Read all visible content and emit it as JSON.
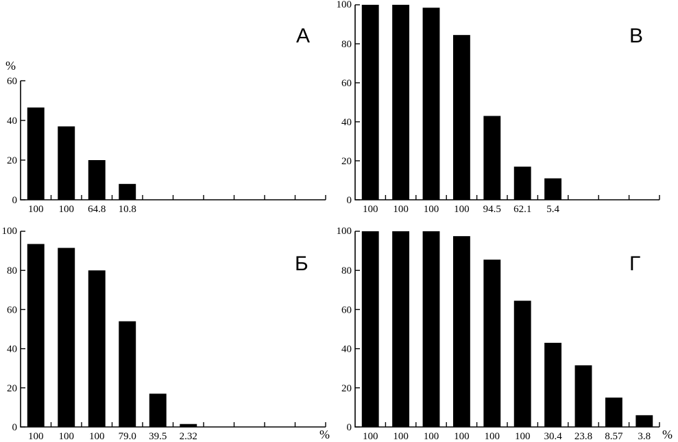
{
  "chart_data": [
    {
      "type": "bar",
      "panel": "А",
      "y_unit": "%",
      "x_unit": "",
      "ylim": [
        0,
        60
      ],
      "yticks": [
        "0",
        "20",
        "40",
        "60"
      ],
      "slots": 10,
      "categories": [
        "100",
        "100",
        "64.8",
        "10.8"
      ],
      "values": [
        46.5,
        37,
        20,
        8
      ],
      "bar_color": "#000000",
      "grid": false
    },
    {
      "type": "bar",
      "panel": "В",
      "y_unit": "",
      "x_unit": "",
      "ylim": [
        0,
        100
      ],
      "yticks": [
        "0",
        "20",
        "40",
        "60",
        "80",
        "100"
      ],
      "slots": 10,
      "categories": [
        "100",
        "100",
        "100",
        "100",
        "94.5",
        "62.1",
        "5.4"
      ],
      "values": [
        100,
        100,
        98.5,
        84.5,
        43,
        17,
        11
      ],
      "bar_color": "#000000",
      "grid": false
    },
    {
      "type": "bar",
      "panel": "Б",
      "y_unit": "",
      "x_unit": "%",
      "ylim": [
        0,
        100
      ],
      "yticks": [
        "0",
        "20",
        "40",
        "60",
        "80",
        "100"
      ],
      "slots": 10,
      "categories": [
        "100",
        "100",
        "100",
        "79.0",
        "39.5",
        "2.32"
      ],
      "values": [
        93.5,
        91.5,
        80,
        54,
        17,
        1.5
      ],
      "bar_color": "#000000",
      "grid": false
    },
    {
      "type": "bar",
      "panel": "Г",
      "y_unit": "",
      "x_unit": "%",
      "ylim": [
        0,
        100
      ],
      "yticks": [
        "0",
        "20",
        "40",
        "60",
        "80",
        "100"
      ],
      "slots": 10,
      "categories": [
        "100",
        "100",
        "100",
        "100",
        "100",
        "100",
        "30.4",
        "23.8",
        "8.57",
        "3.8"
      ],
      "values": [
        100,
        100,
        100,
        97.5,
        85.5,
        64.5,
        43,
        31.5,
        15,
        6
      ],
      "bar_color": "#000000",
      "grid": false
    }
  ]
}
